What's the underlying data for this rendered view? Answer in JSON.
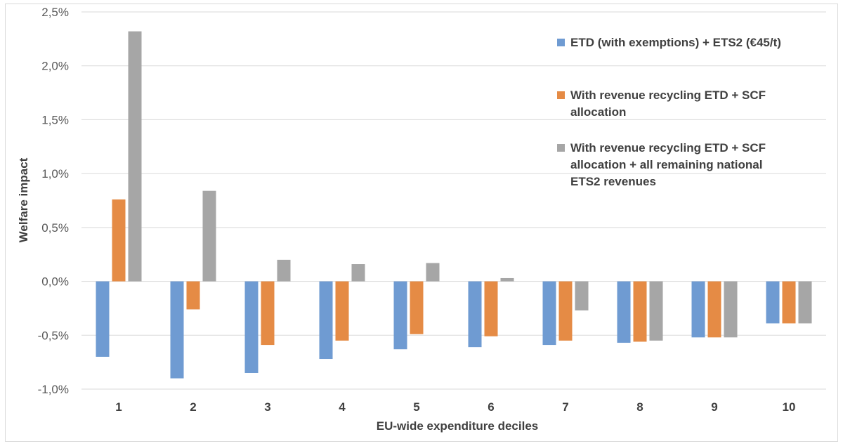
{
  "chart_data": {
    "type": "bar",
    "xlabel": "EU-wide expenditure deciles",
    "ylabel": "Welfare impact",
    "ylim": [
      -1.0,
      2.5
    ],
    "yticks": [
      "2,5%",
      "2,0%",
      "1,5%",
      "1,0%",
      "0,5%",
      "0,0%",
      "-0,5%",
      "-1,0%"
    ],
    "ytick_values": [
      2.5,
      2.0,
      1.5,
      1.0,
      0.5,
      0.0,
      -0.5,
      -1.0
    ],
    "grid": true,
    "legend_position": "right",
    "categories": [
      "1",
      "2",
      "3",
      "4",
      "5",
      "6",
      "7",
      "8",
      "9",
      "10"
    ],
    "series": [
      {
        "name": "ETD (with exemptions) + ETS2 (€45/t)",
        "legend_lines": [
          "ETD (with exemptions) + ETS2 (€45/t)"
        ],
        "color": "#6f9bd2",
        "values": [
          -0.7,
          -0.9,
          -0.85,
          -0.72,
          -0.63,
          -0.61,
          -0.59,
          -0.57,
          -0.52,
          -0.39
        ]
      },
      {
        "name": "With revenue recycling ETD + SCF allocation",
        "legend_lines": [
          "With revenue recycling ETD + SCF",
          "allocation"
        ],
        "color": "#e58b45",
        "values": [
          0.76,
          -0.26,
          -0.59,
          -0.55,
          -0.49,
          -0.51,
          -0.55,
          -0.56,
          -0.52,
          -0.39
        ]
      },
      {
        "name": "With revenue recycling ETD + SCF allocation + all remaining national ETS2 revenues",
        "legend_lines": [
          "With revenue recycling ETD + SCF",
          "allocation + all remaining national",
          "ETS2 revenues"
        ],
        "color": "#a6a6a6",
        "values": [
          2.32,
          0.84,
          0.2,
          0.16,
          0.17,
          0.03,
          -0.27,
          -0.55,
          -0.52,
          -0.39
        ]
      }
    ]
  }
}
